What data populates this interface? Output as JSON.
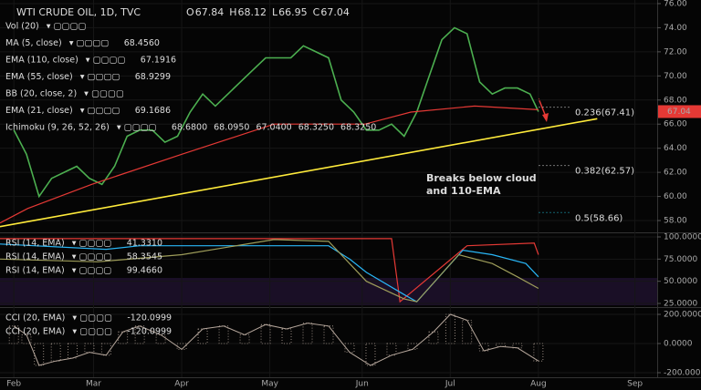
{
  "chart_data": [
    {
      "type": "line",
      "title": "WTI CRUDE OIL, 1D, TVC",
      "ohlc": [
        {
          "name": "O",
          "label": "67.84"
        },
        {
          "name": "H",
          "label": "68.12"
        },
        {
          "name": "L",
          "label": "66.95"
        },
        {
          "name": "C",
          "label": "67.04"
        }
      ],
      "legend": [
        {
          "name": "Vol (20)",
          "value_labels": [],
          "colors": []
        },
        {
          "name": "MA (5, close)",
          "value_labels": [
            "68.4560"
          ],
          "colors": [
            "#ffeb3b"
          ]
        },
        {
          "name": "EMA (110, close)",
          "value_labels": [
            "67.1916"
          ],
          "colors": [
            "#e53935"
          ]
        },
        {
          "name": "EMA (55, close)",
          "value_labels": [
            "68.9299"
          ],
          "colors": [
            "#dddddd"
          ]
        },
        {
          "name": "BB (20, close, 2)",
          "value_labels": [],
          "colors": []
        },
        {
          "name": "EMA (21, close)",
          "value_labels": [
            "69.1686"
          ],
          "colors": [
            "#dddddd"
          ]
        },
        {
          "name": "Ichimoku (9, 26, 52, 26)",
          "value_labels": [
            "68.6800",
            "68.0950",
            "67.0400",
            "68.3250",
            "68.3250"
          ],
          "colors": [
            "#29b6f6",
            "#e53935",
            "#8bc34a",
            "#8bc34a",
            "#e0e0e0"
          ]
        }
      ],
      "xlim": [
        -3.3,
        153.3
      ],
      "xticks": [
        {
          "value": 0,
          "label": "Feb"
        },
        {
          "value": 19,
          "label": "Mar"
        },
        {
          "value": 40,
          "label": "Apr"
        },
        {
          "value": 61,
          "label": "May"
        },
        {
          "value": 83,
          "label": "Jun"
        },
        {
          "value": 104,
          "label": "Jul"
        },
        {
          "value": 125,
          "label": "Aug"
        },
        {
          "value": 148,
          "label": "Sep"
        }
      ],
      "ylim": [
        57.02,
        76.3
      ],
      "yticks": [
        {
          "value": 58,
          "label": "58.00"
        },
        {
          "value": 60,
          "label": "60.00"
        },
        {
          "value": 62,
          "label": "62.00"
        },
        {
          "value": 64,
          "label": "64.00"
        },
        {
          "value": 66,
          "label": "66.00"
        },
        {
          "value": 68,
          "label": "68.00"
        },
        {
          "value": 70,
          "label": "70.00"
        },
        {
          "value": 72,
          "label": "72.00"
        },
        {
          "value": 74,
          "label": "74.00"
        },
        {
          "value": 76,
          "label": "76.00"
        }
      ],
      "last": {
        "value": 67.04,
        "label": "67.04"
      },
      "series": [
        {
          "color": "#4caf50",
          "x": [
            0,
            3,
            6,
            9,
            12,
            15,
            18,
            21,
            24,
            27,
            30,
            33,
            36,
            39,
            42,
            45,
            48,
            51,
            54,
            57,
            60,
            63,
            66,
            69,
            72,
            75,
            78,
            81,
            84,
            87,
            90,
            93,
            96,
            99,
            102,
            105,
            108,
            111,
            114,
            117,
            120,
            123,
            125
          ],
          "values": [
            65.5,
            63.5,
            60,
            61.5,
            62,
            62.5,
            61.5,
            61,
            62.5,
            65,
            65.5,
            65.5,
            64.5,
            65,
            67,
            68.5,
            67.5,
            68.5,
            69.5,
            70.5,
            71.5,
            71.5,
            71.5,
            72.5,
            72,
            71.5,
            68,
            67,
            65.5,
            65.5,
            66,
            65,
            67,
            70,
            73,
            74,
            73.5,
            69.5,
            68.5,
            69,
            69,
            68.5,
            67.04
          ]
        },
        {
          "color": "#e53935",
          "x": [
            -3.3,
            3.3,
            18.5,
            40,
            62,
            83.7,
            94.6,
            109.8,
            125
          ],
          "values": [
            57.8,
            59,
            61,
            63.5,
            66,
            66,
            67,
            67.5,
            67.2
          ]
        }
      ],
      "trendline": {
        "color": "#ffeb3b",
        "x": [
          -3.3,
          139
        ],
        "values": [
          57.5,
          66.45
        ]
      },
      "fib": [
        {
          "label": "0.236(67.41)",
          "value": 67.41,
          "color": "#dddddd"
        },
        {
          "label": "0.382(62.57)",
          "value": 62.57,
          "color": "#dddddd"
        },
        {
          "label": "0.5(58.66)",
          "value": 58.66,
          "color": "#26c6da"
        }
      ],
      "annotation": [
        "Breaks below cloud",
        "and 110-EMA"
      ]
    },
    {
      "type": "line",
      "legend": [
        {
          "name": "RSI (14, EMA)",
          "value_labels": [
            "41.3310"
          ],
          "colors": [
            "#8bc34a"
          ]
        },
        {
          "name": "RSI (14, EMA)",
          "value_labels": [
            "58.3545"
          ],
          "colors": [
            "#29b6f6"
          ]
        },
        {
          "name": "RSI (14, EMA)",
          "value_labels": [
            "99.4660"
          ],
          "colors": [
            "#e53935"
          ]
        }
      ],
      "xlim": [
        -3.3,
        153.3
      ],
      "ylim": [
        20.9,
        104.1
      ],
      "yticks": [
        {
          "value": 25,
          "label": "25.0000"
        },
        {
          "value": 50,
          "label": "50.0000"
        },
        {
          "value": 75,
          "label": "75.0000"
        },
        {
          "value": 100,
          "label": "100.0000"
        }
      ],
      "series": [
        {
          "color": "#e53935",
          "x": [
            -3.3,
            90,
            92,
            108,
            124,
            125
          ],
          "values": [
            98,
            98,
            27,
            90,
            93,
            80
          ]
        },
        {
          "color": "#29b6f6",
          "x": [
            -3.3,
            22,
            30,
            75,
            80,
            84,
            93,
            96,
            107,
            114,
            122,
            125
          ],
          "values": [
            92,
            86,
            90,
            90,
            75,
            60,
            35,
            27,
            85,
            80,
            70,
            55
          ]
        },
        {
          "color": "#9e9d5a",
          "x": [
            -3.3,
            20,
            40,
            62,
            75,
            84,
            93,
            96,
            106,
            114,
            120,
            125
          ],
          "values": [
            75,
            72,
            80,
            97,
            95,
            50,
            30,
            27,
            80,
            70,
            55,
            42
          ]
        }
      ]
    },
    {
      "type": "bar",
      "legend": [
        {
          "name": "CCI (20, EMA)",
          "value_labels": [
            "-120.0999"
          ],
          "colors": [
            "#cccccc"
          ]
        },
        {
          "name": "CCI (20, EMA)",
          "value_labels": [
            "-120.0999"
          ],
          "colors": [
            "#ffeb3b"
          ]
        }
      ],
      "xlim": [
        -3.3,
        153.3
      ],
      "ylim": [
        -231.25,
        243.75
      ],
      "yticks": [
        {
          "value": -200,
          "label": "-200.0000"
        },
        {
          "value": 0,
          "label": "0.0000"
        },
        {
          "value": 200,
          "label": "200.0000"
        }
      ],
      "series": [
        {
          "color": "#b5a69b",
          "x": [
            0,
            3,
            6,
            10,
            14,
            18,
            22,
            26,
            30,
            35,
            40,
            45,
            50,
            55,
            60,
            65,
            70,
            75,
            80,
            85,
            90,
            95,
            100,
            104,
            108,
            112,
            116,
            120,
            125
          ],
          "values": [
            120,
            60,
            -150,
            -120,
            -100,
            -60,
            -80,
            80,
            120,
            60,
            -40,
            100,
            120,
            60,
            130,
            100,
            140,
            120,
            -60,
            -150,
            -80,
            -40,
            80,
            200,
            160,
            -50,
            -20,
            -30,
            -120
          ]
        }
      ]
    }
  ]
}
